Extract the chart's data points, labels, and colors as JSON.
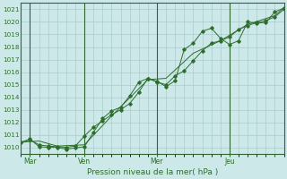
{
  "xlabel": "Pression niveau de la mer( hPa )",
  "bg_color": "#cce8e8",
  "grid_color": "#aacccc",
  "line_color": "#2d6e2d",
  "marker_color": "#2d6e2d",
  "ylim": [
    1009.5,
    1021.5
  ],
  "yticks": [
    1010,
    1011,
    1012,
    1013,
    1014,
    1015,
    1016,
    1017,
    1018,
    1019,
    1020,
    1021
  ],
  "xlim": [
    0,
    14.5
  ],
  "vlines_x": [
    0.5,
    3.5,
    7.5,
    11.5
  ],
  "day_ticks_x": [
    0.5,
    3.5,
    7.5,
    11.5,
    14.0
  ],
  "day_labels": [
    "Mar",
    "Ven",
    "Mer",
    "Jeu",
    ""
  ],
  "series1_x": [
    0.0,
    0.5,
    1.0,
    1.5,
    2.0,
    2.5,
    3.0,
    3.5,
    4.0,
    4.5,
    5.0,
    5.5,
    6.0,
    6.5,
    7.0,
    7.5,
    8.0,
    8.5,
    9.0,
    9.5,
    10.0,
    10.5,
    11.0,
    11.5,
    12.0,
    12.5,
    13.0,
    13.5,
    14.0,
    14.5
  ],
  "series1_y": [
    1010.4,
    1010.65,
    1010.05,
    1010.0,
    1010.0,
    1009.85,
    1009.95,
    1010.05,
    1011.2,
    1012.3,
    1012.9,
    1013.2,
    1014.1,
    1015.2,
    1015.5,
    1015.25,
    1014.85,
    1015.3,
    1017.8,
    1018.3,
    1019.25,
    1019.5,
    1018.7,
    1018.2,
    1018.5,
    1020.0,
    1019.9,
    1019.95,
    1020.8,
    1021.1
  ],
  "series2_x": [
    0.0,
    0.5,
    1.0,
    1.5,
    2.0,
    2.5,
    3.0,
    3.5,
    4.0,
    4.5,
    5.0,
    5.5,
    6.0,
    6.5,
    7.0,
    7.5,
    8.0,
    8.5,
    9.0,
    9.5,
    10.0,
    10.5,
    11.0,
    11.5,
    12.0,
    12.5,
    13.0,
    13.5,
    14.0,
    14.5
  ],
  "series2_y": [
    1010.4,
    1010.6,
    1010.2,
    1010.1,
    1010.05,
    1010.0,
    1010.1,
    1010.9,
    1011.6,
    1012.1,
    1012.6,
    1013.0,
    1013.5,
    1014.4,
    1015.5,
    1015.2,
    1015.0,
    1015.7,
    1016.1,
    1016.9,
    1017.7,
    1018.3,
    1018.5,
    1018.8,
    1019.4,
    1019.7,
    1019.95,
    1020.1,
    1020.4,
    1021.0
  ],
  "series3_x": [
    0.0,
    1.0,
    2.0,
    3.5,
    5.0,
    7.0,
    8.0,
    9.5,
    11.0,
    12.5,
    14.0,
    14.5
  ],
  "series3_y": [
    1010.4,
    1010.5,
    1010.1,
    1010.2,
    1012.5,
    1015.4,
    1015.5,
    1017.5,
    1018.5,
    1019.8,
    1020.5,
    1021.15
  ]
}
